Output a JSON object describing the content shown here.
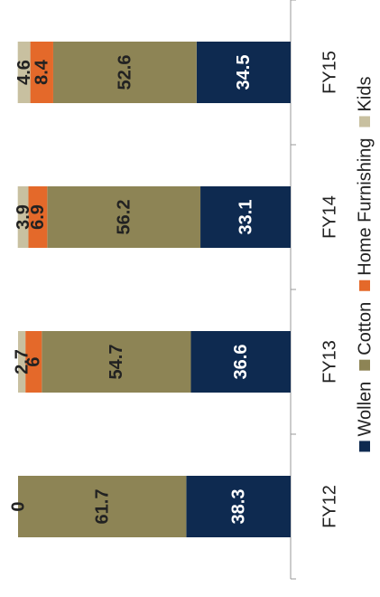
{
  "chart_data": {
    "type": "stacked_bar",
    "categories": [
      "FY12",
      "FY13",
      "FY14",
      "FY15"
    ],
    "series": [
      {
        "name": "Wollen",
        "color": "#0e2a50",
        "values": [
          38.3,
          36.6,
          33.1,
          34.5
        ]
      },
      {
        "name": "Cotton",
        "color": "#8d8455",
        "values": [
          61.7,
          54.7,
          56.2,
          52.6
        ]
      },
      {
        "name": "Home Furnishing",
        "color": "#e4692a",
        "values": [
          null,
          6,
          6.9,
          8.4
        ]
      },
      {
        "name": "Kids",
        "color": "#c8c0a0",
        "values": [
          0,
          2.7,
          3.9,
          4.6
        ]
      }
    ],
    "ylim": [
      0,
      100
    ],
    "legend": "bottom"
  }
}
